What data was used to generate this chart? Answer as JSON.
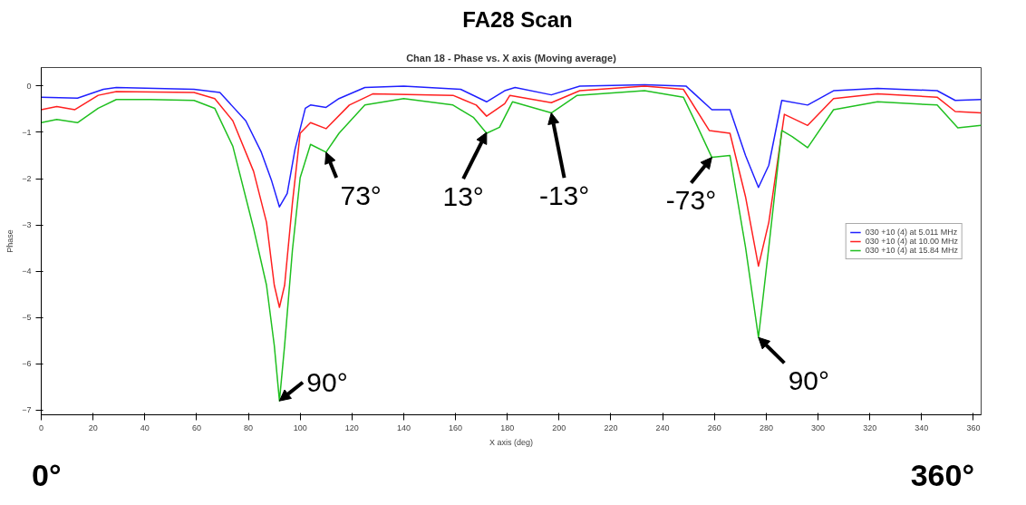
{
  "chart_data": {
    "type": "line",
    "title": "FA28 Scan",
    "subtitle": "Chan 18 - Phase vs. X axis (Moving average)",
    "xlabel": "X axis (deg)",
    "ylabel": "Phase",
    "xlim": [
      0,
      363
    ],
    "ylim": [
      -7.1,
      0.4
    ],
    "xticks": [
      0,
      20,
      40,
      60,
      80,
      100,
      120,
      140,
      160,
      180,
      200,
      220,
      240,
      260,
      280,
      300,
      320,
      340,
      360
    ],
    "yticks": [
      0,
      -1,
      -2,
      -3,
      -4,
      -5,
      -6,
      -7
    ],
    "grid": false,
    "legend": "right",
    "marker": "none",
    "line_style": "solid",
    "series": [
      {
        "name": "030 +10 (4) at 5.011 MHz",
        "color": "#2020ff",
        "x": [
          0,
          14,
          24,
          29,
          59,
          69,
          79,
          85,
          89,
          92,
          95,
          98,
          102,
          104,
          110,
          115,
          125,
          140,
          162,
          172,
          179,
          183,
          197,
          208,
          233,
          249,
          259,
          266,
          272,
          277,
          281,
          286,
          296,
          306,
          323,
          346,
          353,
          363
        ],
        "values": [
          -0.24,
          -0.26,
          -0.07,
          -0.03,
          -0.07,
          -0.14,
          -0.75,
          -1.43,
          -2.05,
          -2.61,
          -2.32,
          -1.37,
          -0.48,
          -0.41,
          -0.46,
          -0.27,
          -0.03,
          0,
          -0.07,
          -0.34,
          -0.1,
          -0.03,
          -0.19,
          0,
          0.03,
          0,
          -0.51,
          -0.51,
          -1.5,
          -2.19,
          -1.71,
          -0.31,
          -0.41,
          -0.1,
          -0.05,
          -0.1,
          -0.31,
          -0.29
        ]
      },
      {
        "name": "030 +10 (4) at 10.00 MHz",
        "color": "#ff2020",
        "x": [
          0,
          6,
          13,
          22,
          29,
          59,
          67,
          74,
          82,
          87,
          90,
          92,
          94,
          97,
          100,
          104,
          110,
          119,
          128,
          159,
          168,
          172,
          179,
          181,
          197,
          208,
          233,
          248,
          258,
          266,
          272,
          277,
          281,
          287,
          296,
          306,
          323,
          346,
          353,
          363
        ],
        "values": [
          -0.51,
          -0.44,
          -0.51,
          -0.2,
          -0.12,
          -0.14,
          -0.27,
          -0.75,
          -1.84,
          -2.94,
          -4.3,
          -4.78,
          -4.3,
          -2.53,
          -1.02,
          -0.79,
          -0.92,
          -0.41,
          -0.17,
          -0.2,
          -0.41,
          -0.65,
          -0.38,
          -0.2,
          -0.36,
          -0.1,
          0,
          -0.07,
          -0.96,
          -1.02,
          -2.39,
          -3.89,
          -2.94,
          -0.61,
          -0.85,
          -0.27,
          -0.17,
          -0.24,
          -0.55,
          -0.58
        ]
      },
      {
        "name": "030 +10 (4) at 15.84 MHz",
        "color": "#20c020",
        "x": [
          0,
          6,
          14,
          22,
          29,
          42,
          59,
          67,
          74,
          82,
          87,
          90,
          92,
          94,
          97,
          100,
          104,
          110,
          115,
          125,
          140,
          159,
          167,
          172,
          177,
          182,
          197,
          207,
          233,
          248,
          253,
          259,
          266,
          272,
          277,
          281,
          286,
          290,
          296,
          306,
          323,
          346,
          354,
          363
        ],
        "values": [
          -0.79,
          -0.72,
          -0.79,
          -0.48,
          -0.29,
          -0.29,
          -0.31,
          -0.48,
          -1.3,
          -3.07,
          -4.3,
          -5.6,
          -6.8,
          -5.6,
          -3.55,
          -1.98,
          -1.26,
          -1.43,
          -1.02,
          -0.41,
          -0.27,
          -0.41,
          -0.68,
          -1.02,
          -0.89,
          -0.34,
          -0.58,
          -0.2,
          -0.1,
          -0.24,
          -0.82,
          -1.54,
          -1.5,
          -3.48,
          -5.43,
          -3.48,
          -0.96,
          -1.09,
          -1.33,
          -0.51,
          -0.34,
          -0.41,
          -0.9,
          -0.85
        ]
      }
    ],
    "annotations": [
      {
        "text": "73°",
        "x": 110,
        "y": -1.43
      },
      {
        "text": "13°",
        "x": 172,
        "y": -1.0
      },
      {
        "text": "-13°",
        "x": 197,
        "y": -0.58
      },
      {
        "text": "-73°",
        "x": 259,
        "y": -1.54
      },
      {
        "text": "90°",
        "x": 92,
        "y": -6.8
      },
      {
        "text": "90°",
        "x": 277,
        "y": -5.43
      },
      "0°",
      "360°"
    ]
  }
}
